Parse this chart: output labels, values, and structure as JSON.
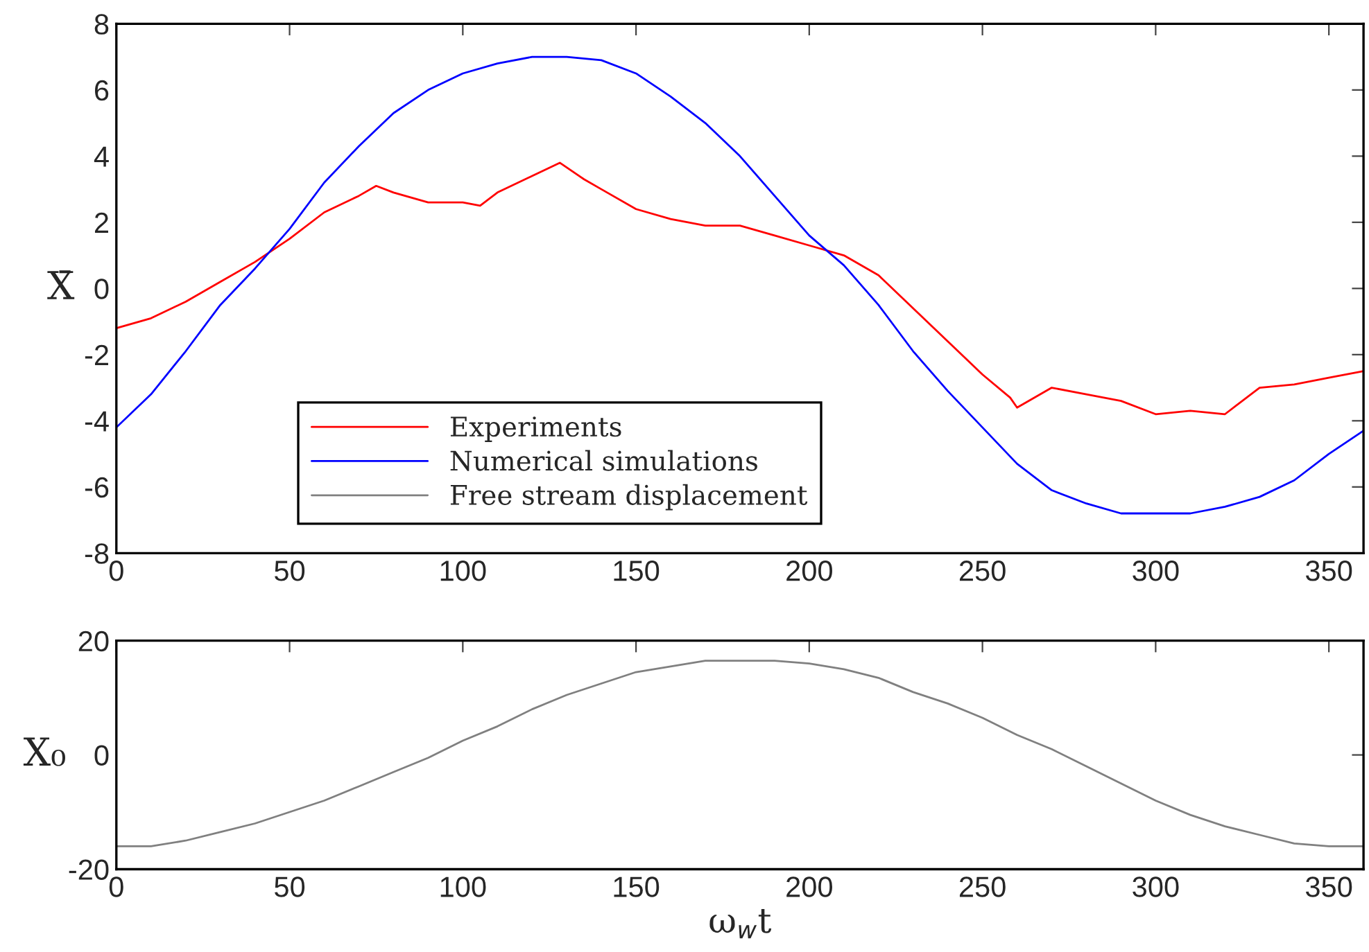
{
  "chart_data": [
    {
      "type": "line",
      "ylabel": "X̄",
      "xlim": [
        0,
        360
      ],
      "ylim": [
        -8,
        8
      ],
      "xticks": [
        0,
        50,
        100,
        150,
        200,
        250,
        300,
        350
      ],
      "yticks": [
        -8,
        -6,
        -4,
        -2,
        0,
        2,
        4,
        6,
        8
      ],
      "legend": "bottom left",
      "grid": false,
      "series": [
        {
          "name": "Experiments",
          "color": "#ff0000",
          "x": [
            0,
            10,
            20,
            30,
            40,
            50,
            60,
            70,
            75,
            80,
            90,
            100,
            105,
            110,
            120,
            128,
            135,
            140,
            150,
            160,
            170,
            180,
            190,
            200,
            210,
            220,
            230,
            240,
            250,
            258,
            260,
            270,
            280,
            290,
            300,
            310,
            320,
            330,
            340,
            350,
            360
          ],
          "values": [
            -1.2,
            -0.9,
            -0.4,
            0.2,
            0.8,
            1.5,
            2.3,
            2.8,
            3.1,
            2.9,
            2.6,
            2.6,
            2.5,
            2.9,
            3.4,
            3.8,
            3.3,
            3.0,
            2.4,
            2.1,
            1.9,
            1.9,
            1.6,
            1.3,
            1.0,
            0.4,
            -0.6,
            -1.6,
            -2.6,
            -3.3,
            -3.6,
            -3.0,
            -3.2,
            -3.4,
            -3.8,
            -3.7,
            -3.8,
            -3.0,
            -2.9,
            -2.7,
            -2.5
          ]
        },
        {
          "name": "Numerical simulations",
          "color": "#0000ff",
          "x": [
            0,
            10,
            20,
            30,
            40,
            50,
            60,
            70,
            80,
            90,
            100,
            110,
            120,
            130,
            140,
            150,
            160,
            170,
            180,
            190,
            200,
            210,
            220,
            230,
            240,
            250,
            260,
            270,
            280,
            290,
            300,
            310,
            320,
            330,
            340,
            350,
            360
          ],
          "values": [
            -4.2,
            -3.2,
            -1.9,
            -0.5,
            0.6,
            1.8,
            3.2,
            4.3,
            5.3,
            6.0,
            6.5,
            6.8,
            7.0,
            7.0,
            6.9,
            6.5,
            5.8,
            5.0,
            4.0,
            2.8,
            1.6,
            0.7,
            -0.5,
            -1.9,
            -3.1,
            -4.2,
            -5.3,
            -6.1,
            -6.5,
            -6.8,
            -6.8,
            -6.8,
            -6.6,
            -6.3,
            -5.8,
            -5.0,
            -4.3
          ]
        }
      ]
    },
    {
      "type": "line",
      "ylabel": "X₀",
      "xlabel": "ω$_{w}$t",
      "xlim": [
        0,
        360
      ],
      "ylim": [
        -20,
        20
      ],
      "xticks": [
        0,
        50,
        100,
        150,
        200,
        250,
        300,
        350
      ],
      "yticks": [
        -20,
        0,
        20
      ],
      "grid": false,
      "series": [
        {
          "name": "Free stream displacement",
          "color": "#808080",
          "x": [
            0,
            10,
            20,
            30,
            40,
            50,
            60,
            70,
            80,
            90,
            100,
            110,
            120,
            130,
            140,
            150,
            160,
            170,
            190,
            200,
            210,
            220,
            230,
            240,
            250,
            260,
            270,
            280,
            290,
            300,
            310,
            320,
            330,
            340,
            350,
            360
          ],
          "values": [
            -16,
            -16,
            -15,
            -13.5,
            -12,
            -10,
            -8,
            -5.5,
            -3,
            -0.5,
            2.5,
            5,
            8,
            10.5,
            12.5,
            14.5,
            15.5,
            16.5,
            16.5,
            16,
            15,
            13.5,
            11,
            9,
            6.5,
            3.5,
            1,
            -2,
            -5,
            -8,
            -10.5,
            -12.5,
            -14,
            -15.5,
            -16,
            -16
          ]
        }
      ]
    }
  ]
}
